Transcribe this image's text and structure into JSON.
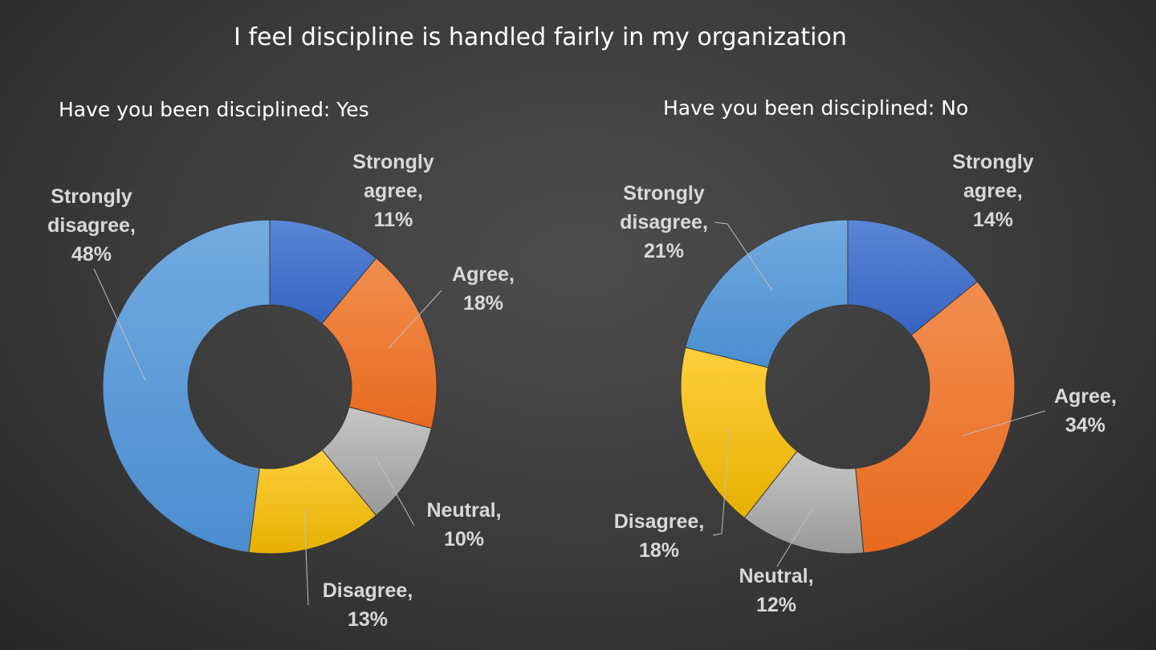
{
  "chart_data": [
    {
      "type": "pie",
      "variant": "donut",
      "title": "I feel discipline is handled fairly in my organization",
      "subtitle": "Have you been disciplined: Yes",
      "categories": [
        "Strongly agree",
        "Agree",
        "Neutral",
        "Disagree",
        "Strongly disagree"
      ],
      "values": [
        11,
        18,
        10,
        13,
        48
      ],
      "unit": "%",
      "labels": [
        [
          "Strongly",
          "agree,",
          "11%"
        ],
        [
          "Agree,",
          "18%"
        ],
        [
          "Neutral,",
          "10%"
        ],
        [
          "Disagree,",
          "13%"
        ],
        [
          "Strongly",
          "disagree,",
          "48%"
        ]
      ],
      "colors": [
        "#4472c4",
        "#ed7d31",
        "#a5a5a5",
        "#ffc000",
        "#5b9bd5"
      ],
      "legend": "none"
    },
    {
      "type": "pie",
      "variant": "donut",
      "subtitle": "Have you been disciplined: No",
      "categories": [
        "Strongly agree",
        "Agree",
        "Neutral",
        "Disagree",
        "Strongly disagree"
      ],
      "values": [
        14,
        34,
        12,
        18,
        21
      ],
      "unit": "%",
      "labels": [
        [
          "Strongly",
          "agree,",
          "14%"
        ],
        [
          "Agree,",
          "34%"
        ],
        [
          "Neutral,",
          "12%"
        ],
        [
          "Disagree,",
          "18%"
        ],
        [
          "Strongly",
          "disagree,",
          "21%"
        ]
      ],
      "colors": [
        "#4472c4",
        "#ed7d31",
        "#a5a5a5",
        "#ffc000",
        "#5b9bd5"
      ],
      "legend": "none"
    }
  ]
}
